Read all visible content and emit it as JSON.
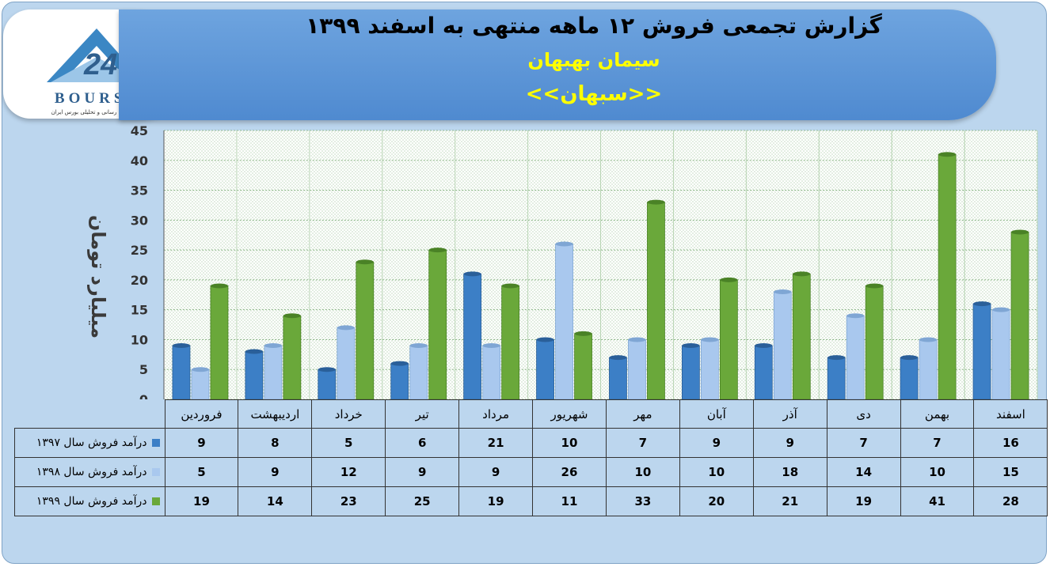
{
  "header": {
    "title": "گزارش تجمعی فروش ۱۲ ماهه منتهی به اسفند ۱۳۹۹",
    "company": "سیمان بهبهان",
    "ticker": "<<سبهان>>"
  },
  "logo": {
    "text": "BOURSE",
    "subtitle": "پایگاه اطلاع رسانی و تحلیلی بورس ایران"
  },
  "colors": {
    "s1397": "#3c7fc6",
    "s1398": "#a9c8ee",
    "s1399": "#6aa83a"
  },
  "chart_data": {
    "type": "bar",
    "ylabel": "میلیارد تومان",
    "ylim": [
      0,
      45
    ],
    "yticks": [
      0,
      5,
      10,
      15,
      20,
      25,
      30,
      35,
      40,
      45
    ],
    "grid": true,
    "legend": "table-bottom",
    "categories": [
      "فروردین",
      "اردیبهشت",
      "خرداد",
      "تیر",
      "مرداد",
      "شهریور",
      "مهر",
      "آبان",
      "آذر",
      "دی",
      "بهمن",
      "اسفند"
    ],
    "series": [
      {
        "name": "درآمد فروش سال ۱۳۹۷",
        "values": [
          9,
          8,
          5,
          6,
          21,
          10,
          7,
          9,
          9,
          7,
          7,
          16
        ]
      },
      {
        "name": "درآمد فروش سال ۱۳۹۸",
        "values": [
          5,
          9,
          12,
          9,
          9,
          26,
          10,
          10,
          18,
          14,
          10,
          15
        ]
      },
      {
        "name": "درآمد فروش سال ۱۳۹۹",
        "values": [
          19,
          14,
          23,
          25,
          19,
          11,
          33,
          20,
          21,
          19,
          41,
          28
        ]
      }
    ]
  }
}
